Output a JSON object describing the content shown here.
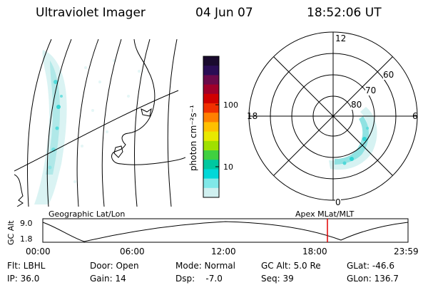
{
  "header": {
    "instrument": "Ultraviolet Imager",
    "date": "04 Jun 07",
    "time": "18:52:06 UT"
  },
  "colorbar": {
    "unit_label": "photon cm⁻²s⁻¹",
    "ticks": [
      "100",
      "10"
    ],
    "colors": [
      "#1a0a2e",
      "#2a0d55",
      "#6a0a4a",
      "#a0002a",
      "#d00000",
      "#f03000",
      "#ff8000",
      "#ffc000",
      "#e8e800",
      "#a0e000",
      "#40d040",
      "#00c8a0",
      "#00d8d8",
      "#80e8e8",
      "#d0f0f0"
    ]
  },
  "polar_plot": {
    "labels": {
      "top": "12",
      "left": "18",
      "right": "6",
      "bottom": "0",
      "lat60": "60",
      "lat70": "70",
      "lat80": "80"
    }
  },
  "timeline": {
    "left_label": "Geographic Lat/Lon",
    "right_label": "Apex MLat/MLT",
    "axis_label": "GC Alt",
    "y_top": "9.0",
    "y_bottom": "1.8",
    "x_ticks": [
      "00:00",
      "06:00",
      "12:00",
      "18:00",
      "23:59"
    ],
    "marker_color": "#e00000"
  },
  "footer": {
    "filter": "Flt: LBHL",
    "door": "Door: Open",
    "mode": "Mode: Normal",
    "gc_alt": "GC Alt: 5.0 Re",
    "glat": "GLat: -46.6",
    "ip": "IP: 36.0",
    "gain": "Gain: 14",
    "dsp": "Dsp:    -7.0",
    "seq": "Seq: 39",
    "glon": "GLon: 136.7"
  }
}
